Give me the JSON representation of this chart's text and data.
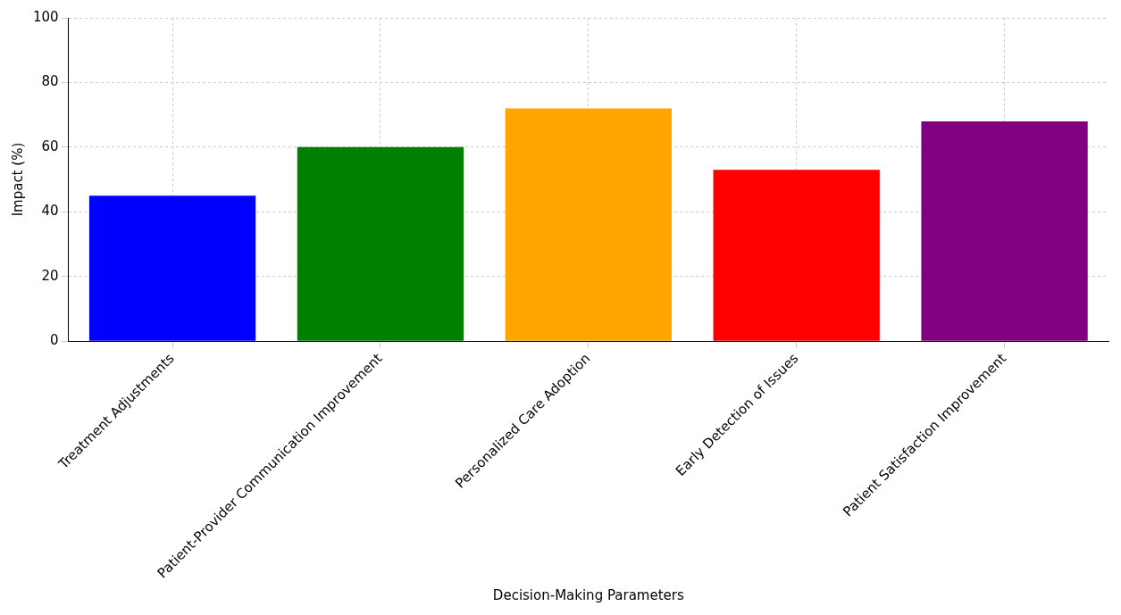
{
  "chart_data": {
    "type": "bar",
    "xlabel": "Decision-Making Parameters",
    "ylabel": "Impact (%)",
    "categories": [
      "Treatment Adjustments",
      "Patient-Provider Communication Improvement",
      "Personalized Care Adoption",
      "Early Detection of Issues",
      "Patient Satisfaction Improvement"
    ],
    "values": [
      45,
      60,
      72,
      53,
      68
    ],
    "colors": [
      "#0000ff",
      "#008000",
      "#ffa500",
      "#ff0000",
      "#800080"
    ],
    "ylim": [
      0,
      100
    ],
    "yticks": [
      0,
      20,
      40,
      60,
      80,
      100
    ],
    "grid": true,
    "legend": false
  }
}
